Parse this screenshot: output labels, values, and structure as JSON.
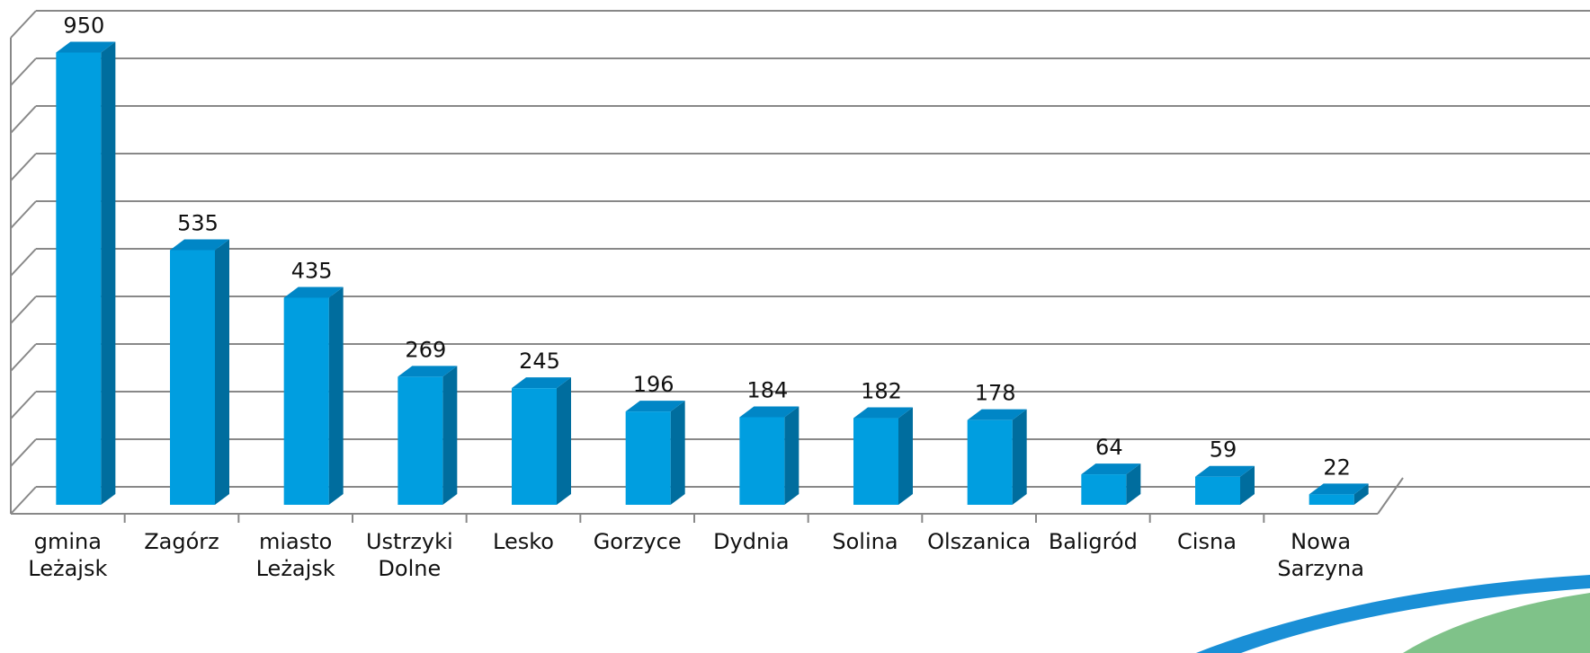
{
  "chart_data": {
    "type": "bar",
    "categories": [
      "gmina Leżajsk",
      "Zagórz",
      "miasto Leżajsk",
      "Ustrzyki Dolne",
      "Lesko",
      "Gorzyce",
      "Dydnia",
      "Solina",
      "Olszanica",
      "Baligród",
      "Cisna",
      "Nowa Sarzyna"
    ],
    "values": [
      950,
      535,
      435,
      269,
      245,
      196,
      184,
      182,
      178,
      64,
      59,
      22
    ],
    "color": "#009ee0",
    "ylim": [
      0,
      1000
    ],
    "yticks": [
      0,
      100,
      200,
      300,
      400,
      500,
      600,
      700,
      800,
      900,
      1000
    ],
    "grid": true
  }
}
